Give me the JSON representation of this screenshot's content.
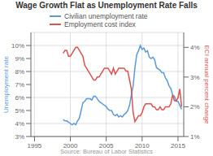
{
  "chart_data": {
    "type": "line",
    "title": "Wage Growth Flat as Unemployment Rate Falls",
    "subtitle": "Source: Bureau of Labor Statistics",
    "ylabel": "Unemployment rate",
    "y2label": "ECI annual percent change",
    "grid": true,
    "legend": "top",
    "xlim": [
      1994.5,
      2015.8
    ],
    "xticks": [
      1995,
      2000,
      2005,
      2010,
      2015
    ],
    "ylim": [
      3,
      11
    ],
    "yticks": [
      {
        "value": 3,
        "label": "3%"
      },
      {
        "value": 4,
        "label": "4%"
      },
      {
        "value": 5,
        "label": "5%"
      },
      {
        "value": 6,
        "label": "6%"
      },
      {
        "value": 7,
        "label": "7%"
      },
      {
        "value": 8,
        "label": "8%"
      },
      {
        "value": 9,
        "label": "9%"
      },
      {
        "value": 10,
        "label": "10%"
      }
    ],
    "y2lim": [
      1,
      4.5
    ],
    "y2ticks": [
      {
        "value": 1,
        "label": "1%"
      },
      {
        "value": 2,
        "label": "2%"
      },
      {
        "value": 3,
        "label": "3%"
      },
      {
        "value": 4,
        "label": "4%"
      }
    ],
    "x": [
      1999.0,
      1999.25,
      1999.5,
      1999.75,
      2000.0,
      2000.25,
      2000.5,
      2000.75,
      2001.0,
      2001.25,
      2001.5,
      2001.75,
      2002.0,
      2002.25,
      2002.5,
      2002.75,
      2003.0,
      2003.25,
      2003.5,
      2003.75,
      2004.0,
      2004.25,
      2004.5,
      2004.75,
      2005.0,
      2005.25,
      2005.5,
      2005.75,
      2006.0,
      2006.25,
      2006.5,
      2006.75,
      2007.0,
      2007.25,
      2007.5,
      2007.75,
      2008.0,
      2008.25,
      2008.5,
      2008.75,
      2009.0,
      2009.25,
      2009.5,
      2009.75,
      2010.0,
      2010.25,
      2010.5,
      2010.75,
      2011.0,
      2011.25,
      2011.5,
      2011.75,
      2012.0,
      2012.25,
      2012.5,
      2012.75,
      2013.0,
      2013.25,
      2013.5,
      2013.75,
      2014.0,
      2014.25,
      2014.5,
      2014.75,
      2015.0,
      2015.25,
      2015.5
    ],
    "series": [
      {
        "name": "Civilian unemployment rate",
        "color": "#5b9bd5",
        "values": [
          4.3,
          4.2,
          4.2,
          4.1,
          4.0,
          3.9,
          4.0,
          3.9,
          4.2,
          4.4,
          5.0,
          5.6,
          5.7,
          5.9,
          5.9,
          5.9,
          5.8,
          6.1,
          6.1,
          5.9,
          5.7,
          5.6,
          5.5,
          5.4,
          5.3,
          5.1,
          5.0,
          5.0,
          4.7,
          4.6,
          4.7,
          4.5,
          4.6,
          4.5,
          4.7,
          4.8,
          5.0,
          5.4,
          6.2,
          6.9,
          8.3,
          9.3,
          9.6,
          10.0,
          9.7,
          9.8,
          9.5,
          9.6,
          9.1,
          9.0,
          9.1,
          8.9,
          8.3,
          8.2,
          8.1,
          7.9,
          7.9,
          7.5,
          7.3,
          6.9,
          6.7,
          6.2,
          6.1,
          5.7,
          5.7,
          5.4,
          5.1
        ]
      },
      {
        "name": "Employment cost index",
        "color": "#d9534f",
        "axis": "y2",
        "values": [
          3.8,
          3.9,
          3.9,
          3.7,
          3.7,
          3.8,
          3.9,
          4.0,
          4.0,
          3.9,
          3.8,
          3.7,
          3.4,
          3.3,
          3.2,
          3.1,
          3.0,
          2.9,
          2.9,
          3.0,
          3.0,
          3.1,
          3.2,
          3.3,
          3.3,
          3.3,
          3.2,
          3.1,
          3.3,
          3.1,
          3.2,
          3.3,
          3.3,
          3.3,
          3.3,
          3.2,
          3.2,
          2.9,
          2.6,
          1.8,
          1.5,
          1.6,
          1.7,
          1.7,
          1.8,
          2.0,
          2.1,
          2.1,
          2.1,
          2.1,
          2.0,
          2.0,
          1.9,
          1.9,
          2.0,
          1.9,
          1.9,
          2.0,
          2.0,
          2.0,
          2.1,
          2.4,
          2.2,
          2.2,
          2.3,
          2.6,
          2.0
        ]
      }
    ]
  }
}
